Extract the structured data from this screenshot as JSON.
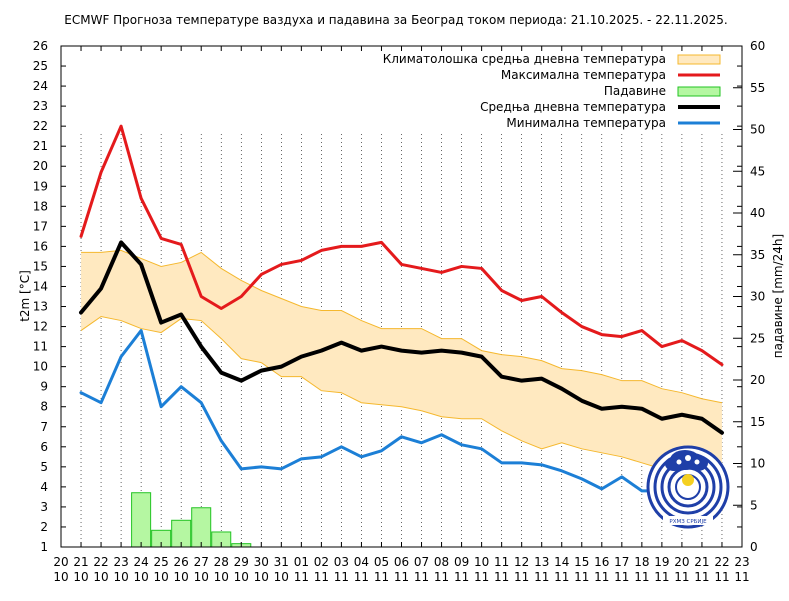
{
  "chart_data": {
    "type": "line",
    "title": "ECMWF Прогноза температуре ваздуха и падавина за Београд током периода: 21.10.2025. - 22.11.2025.",
    "ylabel": "t2m [°C]",
    "y2label": "падавине [mm/24h]",
    "ylim": [
      1,
      26
    ],
    "y2lim": [
      0,
      60
    ],
    "grid": true,
    "legend_position": "top-right",
    "x_day_labels": [
      "20",
      "21",
      "22",
      "23",
      "24",
      "25",
      "26",
      "27",
      "28",
      "29",
      "30",
      "31",
      "01",
      "02",
      "03",
      "04",
      "05",
      "06",
      "07",
      "08",
      "09",
      "10",
      "11",
      "12",
      "13",
      "14",
      "15",
      "16",
      "17",
      "18",
      "19",
      "20",
      "21",
      "22",
      "23"
    ],
    "x_month_labels": [
      "10",
      "10",
      "10",
      "10",
      "10",
      "10",
      "10",
      "10",
      "10",
      "10",
      "10",
      "10",
      "11",
      "11",
      "11",
      "11",
      "11",
      "11",
      "11",
      "11",
      "11",
      "11",
      "11",
      "11",
      "11",
      "11",
      "11",
      "11",
      "11",
      "11",
      "11",
      "11",
      "11",
      "11",
      "11"
    ],
    "x": [
      1,
      2,
      3,
      4,
      5,
      6,
      7,
      8,
      9,
      10,
      11,
      12,
      13,
      14,
      15,
      16,
      17,
      18,
      19,
      20,
      21,
      22,
      23,
      24,
      25,
      26,
      27,
      28,
      29,
      30,
      31,
      32,
      33
    ],
    "climate_band": {
      "name": "Климатолошка средња дневна температура",
      "color": "#ffe9c0",
      "edge": "#f5b82e",
      "upper": [
        15.7,
        15.7,
        15.8,
        15.4,
        15.0,
        15.2,
        15.7,
        14.9,
        14.3,
        13.8,
        13.4,
        13.0,
        12.8,
        12.8,
        12.3,
        11.9,
        11.9,
        11.9,
        11.4,
        11.4,
        10.8,
        10.6,
        10.5,
        10.3,
        9.9,
        9.8,
        9.6,
        9.3,
        9.3,
        8.9,
        8.7,
        8.4,
        8.2
      ],
      "lower": [
        11.8,
        12.5,
        12.3,
        11.9,
        11.7,
        12.4,
        12.3,
        11.4,
        10.4,
        10.2,
        9.5,
        9.5,
        8.8,
        8.7,
        8.2,
        8.1,
        8.0,
        7.8,
        7.5,
        7.4,
        7.4,
        6.8,
        6.3,
        5.9,
        6.2,
        5.9,
        5.7,
        5.5,
        5.2,
        4.9,
        4.6,
        4.4,
        4.0
      ]
    },
    "series": [
      {
        "name": "Максимална температура",
        "color": "#e41a1c",
        "width": 3,
        "values": [
          16.5,
          19.7,
          22.0,
          18.4,
          16.4,
          16.1,
          13.5,
          12.9,
          13.5,
          14.6,
          15.1,
          15.3,
          15.8,
          16.0,
          16.0,
          16.2,
          15.1,
          14.9,
          14.7,
          15.0,
          14.9,
          13.8,
          13.3,
          13.5,
          12.7,
          12.0,
          11.6,
          11.5,
          11.8,
          11.0,
          11.3,
          10.8,
          10.1
        ]
      },
      {
        "name": "Средња дневна температура",
        "color": "#000000",
        "width": 4,
        "values": [
          12.7,
          13.9,
          16.2,
          15.1,
          12.2,
          12.6,
          11.0,
          9.7,
          9.3,
          9.8,
          10.0,
          10.5,
          10.8,
          11.2,
          10.8,
          11.0,
          10.8,
          10.7,
          10.8,
          10.7,
          10.5,
          9.5,
          9.3,
          9.4,
          8.9,
          8.3,
          7.9,
          8.0,
          7.9,
          7.4,
          7.6,
          7.4,
          6.7
        ]
      },
      {
        "name": "Минимална температура",
        "color": "#1c7fd6",
        "width": 3,
        "values": [
          8.7,
          8.2,
          10.5,
          11.8,
          8.0,
          9.0,
          8.2,
          6.3,
          4.9,
          5.0,
          4.9,
          5.4,
          5.5,
          6.0,
          5.5,
          5.8,
          6.5,
          6.2,
          6.6,
          6.1,
          5.9,
          5.2,
          5.2,
          5.1,
          4.8,
          4.4,
          3.9,
          4.5,
          3.8,
          3.8,
          3.8,
          3.8,
          3.6
        ]
      }
    ],
    "precipitation": {
      "name": "Падавине",
      "color": "#b5f7a2",
      "edge": "#22c322",
      "x": [
        4,
        5,
        6,
        7,
        8,
        9
      ],
      "values": [
        6.5,
        2.0,
        3.2,
        4.7,
        1.8,
        0.4
      ]
    },
    "legend": [
      {
        "label": "Климатолошка средња дневна температура",
        "kind": "band"
      },
      {
        "label": "Максимална температура",
        "kind": "line",
        "color": "#e41a1c"
      },
      {
        "label": "Падавине",
        "kind": "bar"
      },
      {
        "label": "Средња дневна температура",
        "kind": "line",
        "color": "#000000"
      },
      {
        "label": "Минимална температура",
        "kind": "line",
        "color": "#1c7fd6"
      }
    ],
    "logo_text": "РХМЗ СРБИЈЕ"
  }
}
